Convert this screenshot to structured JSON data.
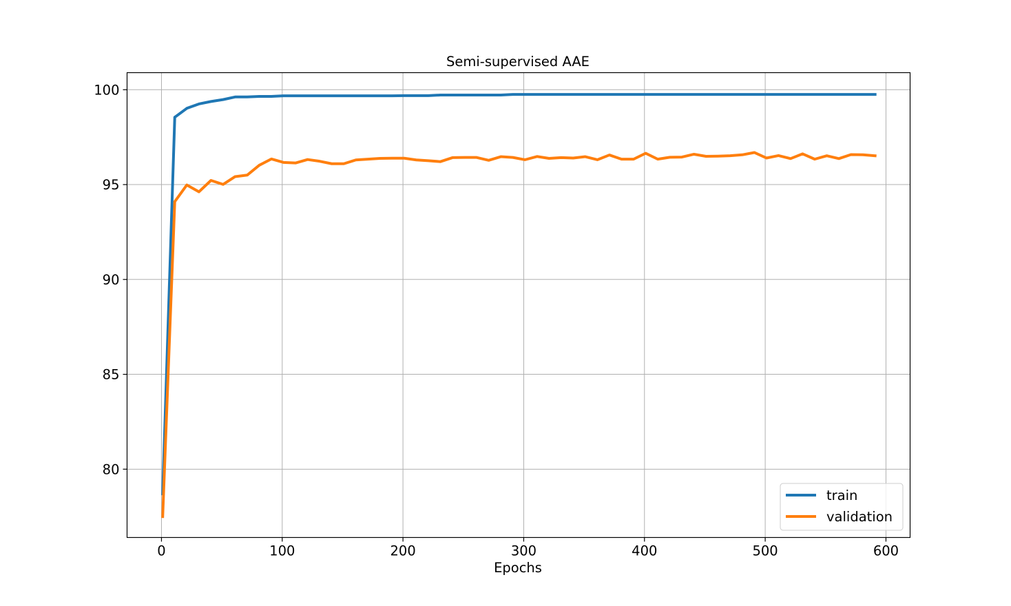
{
  "chart_data": {
    "type": "line",
    "title": "Semi-supervised AAE",
    "xlabel": "Epochs",
    "ylabel": "",
    "xlim": [
      -28.5,
      620
    ],
    "ylim": [
      76.4,
      100.9
    ],
    "xticks": [
      0,
      100,
      200,
      300,
      400,
      500,
      600
    ],
    "yticks": [
      80,
      85,
      90,
      95,
      100
    ],
    "xtick_labels": [
      "0",
      "100",
      "200",
      "300",
      "400",
      "500",
      "600"
    ],
    "ytick_labels": [
      "80",
      "85",
      "90",
      "95",
      "100"
    ],
    "grid": true,
    "legend_position": "lower right",
    "x": [
      1,
      11,
      21,
      31,
      41,
      51,
      61,
      71,
      81,
      91,
      101,
      111,
      121,
      131,
      141,
      151,
      161,
      171,
      181,
      191,
      201,
      211,
      221,
      231,
      241,
      251,
      261,
      271,
      281,
      291,
      301,
      311,
      321,
      331,
      341,
      351,
      361,
      371,
      381,
      391,
      401,
      411,
      421,
      431,
      441,
      451,
      461,
      471,
      481,
      491,
      501,
      511,
      521,
      531,
      541,
      551,
      561,
      571,
      581,
      591
    ],
    "series": [
      {
        "name": "train",
        "color": "#1f77b4",
        "values": [
          78.7,
          98.55,
          99.02,
          99.25,
          99.38,
          99.48,
          99.62,
          99.62,
          99.65,
          99.65,
          99.68,
          99.68,
          99.68,
          99.68,
          99.68,
          99.68,
          99.68,
          99.68,
          99.68,
          99.68,
          99.69,
          99.69,
          99.69,
          99.72,
          99.72,
          99.72,
          99.72,
          99.72,
          99.72,
          99.75,
          99.75,
          99.75,
          99.75,
          99.75,
          99.75,
          99.75,
          99.75,
          99.75,
          99.75,
          99.75,
          99.75,
          99.75,
          99.75,
          99.75,
          99.75,
          99.75,
          99.75,
          99.75,
          99.75,
          99.75,
          99.75,
          99.75,
          99.75,
          99.75,
          99.75,
          99.75,
          99.75,
          99.75,
          99.75,
          99.75
        ]
      },
      {
        "name": "validation",
        "color": "#ff7f0e",
        "values": [
          77.5,
          94.1,
          94.98,
          94.62,
          95.22,
          95.01,
          95.42,
          95.5,
          96.02,
          96.35,
          96.17,
          96.14,
          96.32,
          96.23,
          96.1,
          96.1,
          96.3,
          96.34,
          96.38,
          96.39,
          96.39,
          96.3,
          96.26,
          96.21,
          96.42,
          96.43,
          96.43,
          96.28,
          96.47,
          96.43,
          96.31,
          96.48,
          96.38,
          96.42,
          96.4,
          96.47,
          96.31,
          96.56,
          96.34,
          96.34,
          96.65,
          96.34,
          96.44,
          96.45,
          96.6,
          96.49,
          96.5,
          96.52,
          96.57,
          96.69,
          96.4,
          96.53,
          96.37,
          96.62,
          96.34,
          96.52,
          96.37,
          96.58,
          96.57,
          96.52
        ]
      }
    ]
  }
}
